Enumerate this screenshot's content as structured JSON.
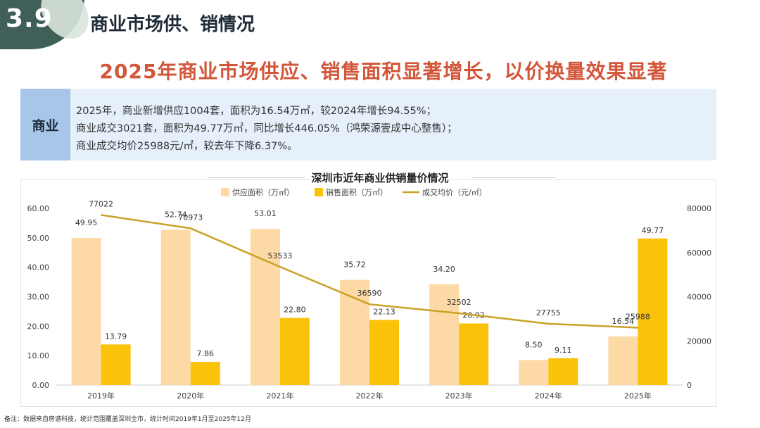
{
  "header": {
    "section_number": "3.9",
    "section_title": "商业市场供、销情况",
    "headline": "2025年商业市场供应、销售面积显著增长，以价换量效果显著"
  },
  "summary": {
    "label": "商业",
    "lines": [
      "2025年，商业新增供应1004套，面积为16.54万㎡，较2024年增长94.55%；",
      "商业成交3021套，面积为49.77万㎡，同比增长446.05%（鸿荣源壹成中心整售）；",
      "商业成交均价25988元/㎡，较去年下降6.37%。"
    ]
  },
  "chart_data": {
    "type": "bar",
    "title": "深圳市近年商业供销量价情况",
    "categories": [
      "2019年",
      "2020年",
      "2021年",
      "2022年",
      "2023年",
      "2024年",
      "2025年"
    ],
    "series": [
      {
        "name": "供应面积（万㎡）",
        "type": "bar",
        "axis": "left",
        "color": "#fdd9a5",
        "values": [
          49.95,
          52.74,
          53.01,
          35.72,
          34.2,
          8.5,
          16.54
        ],
        "labels": [
          "49.95",
          "52.74",
          "53.01",
          "35.72",
          "34.20",
          "8.50",
          "16.54"
        ]
      },
      {
        "name": "销售面积（万㎡）",
        "type": "bar",
        "axis": "left",
        "color": "#fbc20a",
        "values": [
          13.79,
          7.86,
          22.8,
          22.13,
          20.92,
          9.11,
          49.77
        ],
        "labels": [
          "13.79",
          "7.86",
          "22.80",
          "22.13",
          "20.92",
          "9.11",
          "49.77"
        ]
      },
      {
        "name": "成交均价（元/㎡）",
        "type": "line",
        "axis": "right",
        "color": "#c9a227",
        "values": [
          77022,
          70973,
          53533,
          36590,
          32502,
          27755,
          25988
        ],
        "labels": [
          "77022",
          "70973",
          "53533",
          "36590",
          "32502",
          "27755",
          "25988"
        ]
      }
    ],
    "y_left": {
      "min": 0,
      "max": 60,
      "ticks": [
        "0.00",
        "10.00",
        "20.00",
        "30.00",
        "40.00",
        "50.00",
        "60.00"
      ]
    },
    "y_right": {
      "min": 0,
      "max": 80000,
      "ticks": [
        "0",
        "20000",
        "40000",
        "60000",
        "80000"
      ]
    },
    "legend_position": "top-center",
    "grid": false
  },
  "footnote": "备注：数据来自房谱科技，统计范围覆盖深圳全市，统计时间2019年1月至2025年12月"
}
